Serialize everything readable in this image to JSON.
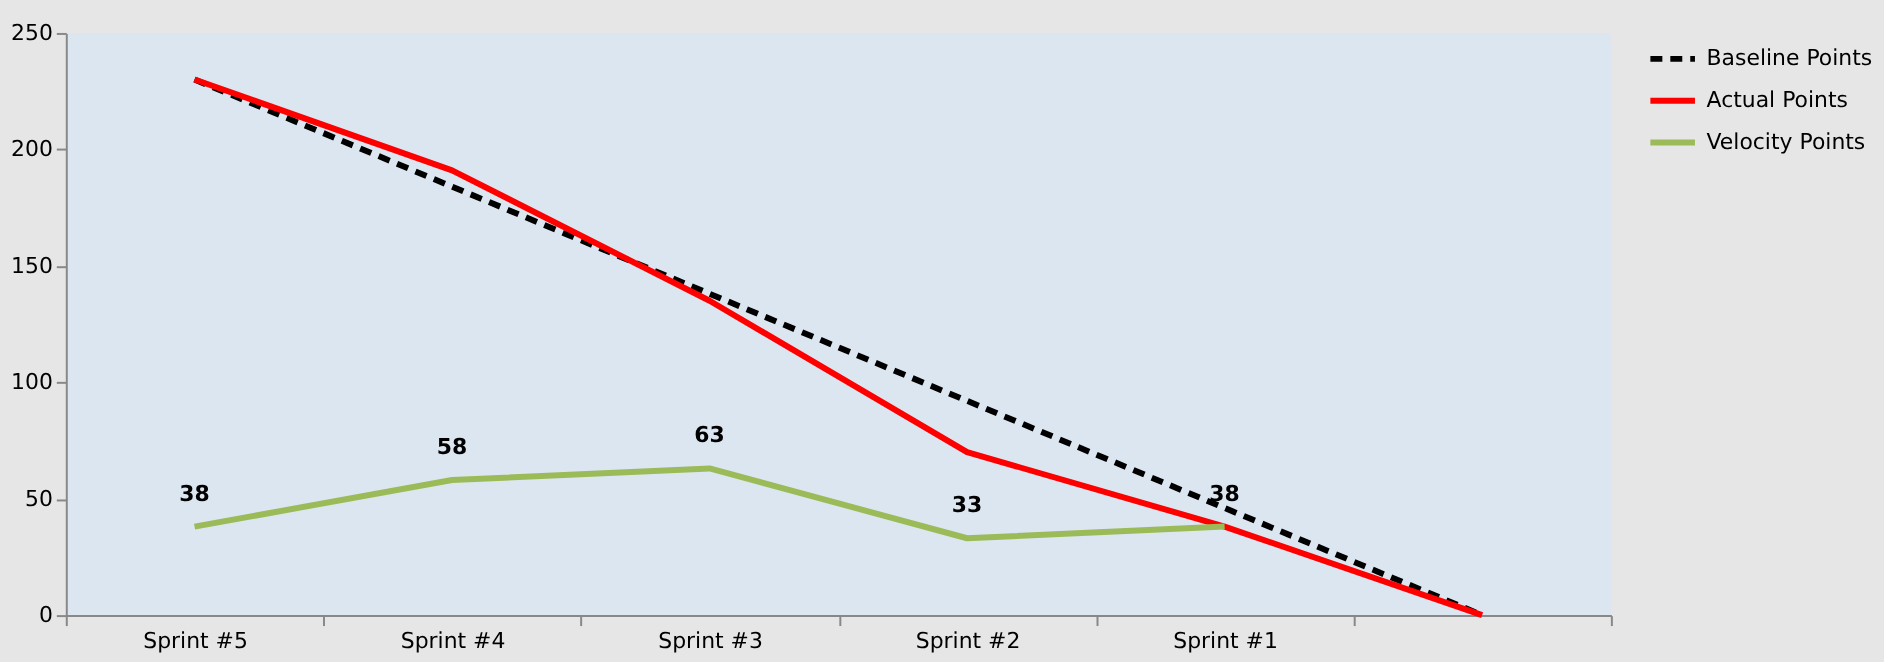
{
  "chart_data": {
    "type": "line",
    "categories": [
      "Sprint #5",
      "Sprint #4",
      "Sprint #3",
      "Sprint #2",
      "Sprint #1",
      null
    ],
    "series": [
      {
        "name": "Baseline Points",
        "color": "#000000",
        "line_style": "dashed",
        "values": [
          230,
          184,
          138,
          92,
          46,
          0
        ]
      },
      {
        "name": "Actual Points",
        "color": "#ff0000",
        "line_style": "solid",
        "values": [
          230,
          191,
          135,
          70,
          38,
          0
        ]
      },
      {
        "name": "Velocity Points",
        "color": "#9bbb59",
        "line_style": "solid",
        "values": [
          38,
          58,
          63,
          33,
          38,
          null
        ],
        "value_labels": [
          "38",
          "58",
          "63",
          "33",
          "38",
          null
        ]
      }
    ],
    "ylim": [
      0,
      250
    ],
    "yticks": [
      0,
      50,
      100,
      150,
      200,
      250
    ],
    "grid": false,
    "legend": "right",
    "marker": "none"
  }
}
